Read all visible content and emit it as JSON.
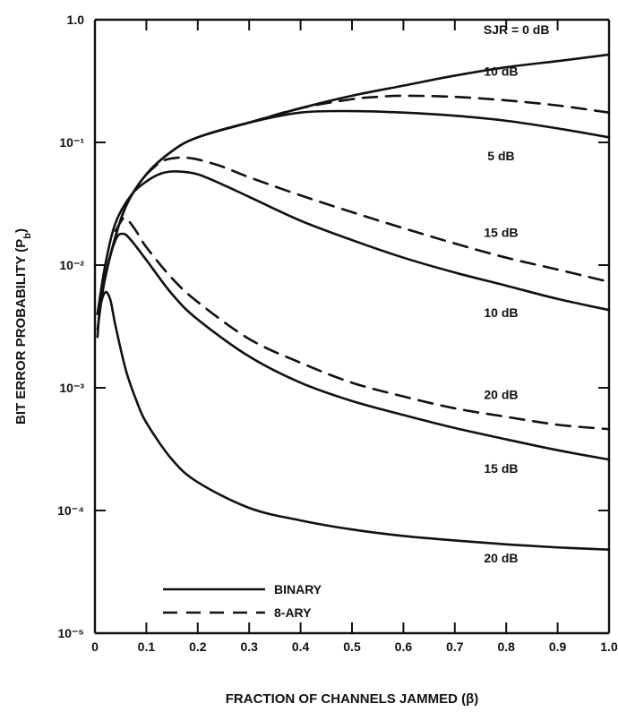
{
  "chart_data": {
    "type": "line",
    "xlabel": "FRACTION OF CHANNELS JAMMED (β)",
    "ylabel": "BIT ERROR PROBABILITY (P_b)",
    "y_scale": "log",
    "xlim": [
      0,
      1.0
    ],
    "ylim": [
      1e-05,
      1.0
    ],
    "x_ticks": [
      "0",
      "0.1",
      "0.2",
      "0.3",
      "0.4",
      "0.5",
      "0.6",
      "0.7",
      "0.8",
      "0.9",
      "1.0"
    ],
    "y_ticks": [
      {
        "value": 1.0,
        "label": "1.0"
      },
      {
        "value": 0.1,
        "label": "10⁻¹"
      },
      {
        "value": 0.01,
        "label": "10⁻²"
      },
      {
        "value": 0.001,
        "label": "10⁻³"
      },
      {
        "value": 0.0001,
        "label": "10⁻⁴"
      },
      {
        "value": 1e-05,
        "label": "10⁻⁵"
      }
    ],
    "legend": {
      "placement": "bottom-left",
      "entries": [
        {
          "label": "BINARY",
          "style": "solid"
        },
        {
          "label": "8-ARY",
          "style": "dashed"
        }
      ]
    },
    "series": [
      {
        "modulation": "binary",
        "style": "solid",
        "label": "SJR = 0 dB",
        "x": [
          0.005,
          0.03,
          0.06,
          0.1,
          0.15,
          0.2,
          0.3,
          0.4,
          0.5,
          0.6,
          0.7,
          0.8,
          0.9,
          1.0
        ],
        "y": [
          0.004,
          0.012,
          0.03,
          0.055,
          0.085,
          0.11,
          0.145,
          0.19,
          0.24,
          0.29,
          0.35,
          0.41,
          0.46,
          0.52
        ]
      },
      {
        "modulation": "binary",
        "style": "solid",
        "label": "5 dB",
        "x": [
          0.005,
          0.03,
          0.06,
          0.1,
          0.15,
          0.2,
          0.3,
          0.4,
          0.5,
          0.6,
          0.7,
          0.8,
          0.9,
          1.0
        ],
        "y": [
          0.004,
          0.012,
          0.03,
          0.055,
          0.085,
          0.11,
          0.145,
          0.175,
          0.18,
          0.175,
          0.165,
          0.15,
          0.13,
          0.11
        ]
      },
      {
        "modulation": "binary",
        "style": "solid",
        "label": "10 dB",
        "x": [
          0.005,
          0.02,
          0.04,
          0.07,
          0.1,
          0.13,
          0.16,
          0.2,
          0.25,
          0.3,
          0.4,
          0.5,
          0.6,
          0.7,
          0.8,
          0.9,
          1.0
        ],
        "y": [
          0.004,
          0.01,
          0.022,
          0.037,
          0.048,
          0.056,
          0.058,
          0.055,
          0.045,
          0.036,
          0.023,
          0.016,
          0.0115,
          0.0087,
          0.0068,
          0.0053,
          0.0043
        ]
      },
      {
        "modulation": "binary",
        "style": "solid",
        "label": "15 dB",
        "x": [
          0.005,
          0.02,
          0.04,
          0.055,
          0.07,
          0.1,
          0.15,
          0.2,
          0.3,
          0.4,
          0.5,
          0.6,
          0.7,
          0.8,
          0.9,
          1.0
        ],
        "y": [
          0.003,
          0.008,
          0.016,
          0.018,
          0.016,
          0.011,
          0.0058,
          0.0036,
          0.0018,
          0.0011,
          0.00078,
          0.0006,
          0.00047,
          0.00038,
          0.00031,
          0.00026
        ]
      },
      {
        "modulation": "binary",
        "style": "solid",
        "label": "20 dB",
        "x": [
          0.005,
          0.01,
          0.02,
          0.03,
          0.04,
          0.06,
          0.08,
          0.1,
          0.15,
          0.2,
          0.3,
          0.4,
          0.5,
          0.6,
          0.7,
          0.8,
          0.9,
          1.0
        ],
        "y": [
          0.0026,
          0.0045,
          0.006,
          0.0052,
          0.0032,
          0.0014,
          0.0008,
          0.00052,
          0.00026,
          0.00017,
          0.000105,
          8.3e-05,
          7e-05,
          6.2e-05,
          5.7e-05,
          5.3e-05,
          5e-05,
          4.8e-05
        ]
      },
      {
        "modulation": "8-ary",
        "style": "dashed",
        "label": "10 dB",
        "x": [
          0.3,
          0.4,
          0.5,
          0.55,
          0.6,
          0.7,
          0.8,
          0.9,
          1.0
        ],
        "y": [
          0.145,
          0.19,
          0.225,
          0.235,
          0.24,
          0.235,
          0.22,
          0.2,
          0.175
        ]
      },
      {
        "modulation": "8-ary",
        "style": "dashed",
        "label": "15 dB",
        "x": [
          0.1,
          0.13,
          0.16,
          0.19,
          0.22,
          0.25,
          0.3,
          0.4,
          0.5,
          0.6,
          0.7,
          0.8,
          0.9,
          1.0
        ],
        "y": [
          0.055,
          0.07,
          0.075,
          0.074,
          0.069,
          0.063,
          0.052,
          0.037,
          0.027,
          0.02,
          0.015,
          0.0115,
          0.0092,
          0.0073
        ]
      },
      {
        "modulation": "8-ary",
        "style": "dashed",
        "label": "20 dB",
        "x": [
          0.04,
          0.055,
          0.065,
          0.08,
          0.1,
          0.15,
          0.2,
          0.3,
          0.4,
          0.5,
          0.6,
          0.7,
          0.8,
          0.9,
          1.0
        ],
        "y": [
          0.019,
          0.024,
          0.023,
          0.019,
          0.014,
          0.0078,
          0.005,
          0.0025,
          0.0016,
          0.0011,
          0.00085,
          0.00068,
          0.00058,
          0.0005,
          0.00046
        ]
      }
    ],
    "curve_labels": [
      {
        "text": "SJR = 0 dB",
        "x": 0.82,
        "y": 0.83
      },
      {
        "text": "10 dB",
        "x": 0.79,
        "y": 0.38
      },
      {
        "text": "5 dB",
        "x": 0.79,
        "y": 0.078
      },
      {
        "text": "15 dB",
        "x": 0.79,
        "y": 0.0185
      },
      {
        "text": "10 dB",
        "x": 0.79,
        "y": 0.0041
      },
      {
        "text": "20 dB",
        "x": 0.79,
        "y": 0.00088
      },
      {
        "text": "15 dB",
        "x": 0.79,
        "y": 0.00022
      },
      {
        "text": "20 dB",
        "x": 0.79,
        "y": 4.1e-05
      }
    ]
  }
}
